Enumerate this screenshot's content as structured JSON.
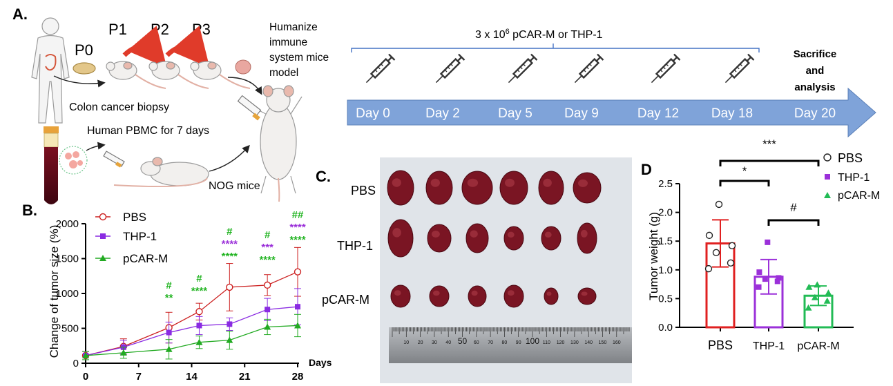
{
  "panel_a": {
    "label": "A.",
    "p0": "P0",
    "p1": "P1",
    "p2": "P2",
    "p3": "P3",
    "humanize_lines": [
      "Humanize",
      "immune",
      "system mice",
      "model"
    ],
    "biopsy": "Colon cancer biopsy",
    "pbmc": "Human PBMC for 7 days",
    "nog": "NOG mice",
    "dose_prefix": "3 x 10",
    "dose_exp": "6",
    "dose_suffix": " pCAR-M or THP-1",
    "timeline_days": [
      "Day 0",
      "Day 2",
      "Day 5",
      "Day 9",
      "Day 12",
      "Day 18",
      "Day 20"
    ],
    "end_lines": [
      "Sacrifice",
      "and",
      "analysis"
    ],
    "colors": {
      "arrow": "#7fa3d9",
      "arrow_text": "#ffffff",
      "syringe": "#333333",
      "bracket": "#4472c4",
      "mouse_arrow": "#e03b2a"
    }
  },
  "panel_b": {
    "label": "B.",
    "x_unit": "Days",
    "ylabel": "Change of tumor size (%)",
    "legend": [
      "PBS",
      "THP-1",
      "pCAR-M"
    ],
    "colors": {
      "PBS": "#cc2020",
      "THP-1": "#8a2be2",
      "pCAR-M": "#22aa22",
      "purple_text": "#9b30d9",
      "green_text": "#22b422"
    },
    "annotations": [
      {
        "day": 11,
        "lines": [
          {
            "text": "#",
            "color": "green"
          },
          {
            "text": "**",
            "color": "green"
          }
        ]
      },
      {
        "day": 15,
        "lines": [
          {
            "text": "#",
            "color": "green"
          },
          {
            "text": "****",
            "color": "green"
          }
        ]
      },
      {
        "day": 19,
        "lines": [
          {
            "text": "#",
            "color": "green"
          },
          {
            "text": "****",
            "color": "purple"
          },
          {
            "text": "****",
            "color": "green"
          }
        ]
      },
      {
        "day": 24,
        "lines": [
          {
            "text": "#",
            "color": "green"
          },
          {
            "text": "***",
            "color": "purple"
          },
          {
            "text": "****",
            "color": "green"
          }
        ]
      },
      {
        "day": 28,
        "lines": [
          {
            "text": "##",
            "color": "green"
          },
          {
            "text": "****",
            "color": "purple"
          },
          {
            "text": "****",
            "color": "green"
          }
        ]
      }
    ]
  },
  "panel_c": {
    "label": "C.",
    "rows": [
      "PBS",
      "THP-1",
      "pCAR-M"
    ],
    "ruler_labels": [
      "10",
      "20",
      "30",
      "40",
      "50",
      "60",
      "70",
      "80",
      "90",
      "100",
      "110",
      "120",
      "130",
      "140",
      "150",
      "160"
    ]
  },
  "panel_d": {
    "label": "D",
    "legend": [
      "PBS",
      "THP-1",
      "pCAR-M"
    ],
    "sig_labels": [
      "***",
      "*",
      "#"
    ],
    "colors": {
      "PBS": "#e02020",
      "THP-1": "#9b30d9",
      "pCAR-M": "#22bb55"
    }
  },
  "chart_data": [
    {
      "type": "line",
      "xlabel": "Days",
      "ylabel": "Change of tumor size (%)",
      "xlim": [
        0,
        28
      ],
      "ylim": [
        0,
        2000
      ],
      "xticks": [
        0,
        7,
        14,
        21,
        28
      ],
      "yticks": [
        0,
        500,
        1000,
        1500,
        2000
      ],
      "legend_position": "top-left",
      "x": [
        0,
        5,
        11,
        15,
        19,
        24,
        28
      ],
      "series": [
        {
          "name": "PBS",
          "marker": "open-circle",
          "values": [
            110,
            240,
            510,
            740,
            1090,
            1120,
            1310
          ],
          "errors": [
            60,
            110,
            220,
            120,
            340,
            150,
            350
          ]
        },
        {
          "name": "THP-1",
          "marker": "square",
          "values": [
            110,
            230,
            440,
            540,
            560,
            770,
            810
          ],
          "errors": [
            60,
            100,
            150,
            130,
            90,
            160,
            260
          ]
        },
        {
          "name": "pCAR-M",
          "marker": "triangle",
          "values": [
            110,
            150,
            200,
            300,
            330,
            520,
            540
          ],
          "errors": [
            60,
            80,
            140,
            90,
            130,
            110,
            160
          ]
        }
      ]
    },
    {
      "type": "bar",
      "ylabel": "Tumor weight (g)",
      "categories": [
        "PBS",
        "THP-1",
        "pCAR-M"
      ],
      "ylim": [
        0,
        2.5
      ],
      "yticks": [
        0.0,
        0.5,
        1.0,
        1.5,
        2.0,
        2.5
      ],
      "yticklabels": [
        "0.0",
        "0.5",
        "1.0",
        "1.5",
        "2.0",
        "2.5"
      ],
      "legend_position": "top-right",
      "series": [
        {
          "name": "PBS",
          "marker": "open-circle",
          "mean": 1.46,
          "sd": 0.41,
          "points": [
            2.14,
            1.6,
            1.42,
            1.3,
            1.12,
            1.02
          ]
        },
        {
          "name": "THP-1",
          "marker": "square",
          "mean": 0.88,
          "sd": 0.3,
          "points": [
            1.48,
            0.96,
            0.86,
            0.84,
            0.8,
            0.7
          ]
        },
        {
          "name": "pCAR-M",
          "marker": "triangle",
          "mean": 0.55,
          "sd": 0.17,
          "points": [
            0.74,
            0.7,
            0.6,
            0.52,
            0.46,
            0.34
          ]
        }
      ],
      "significance": [
        {
          "from": "PBS",
          "to": "pCAR-M",
          "label": "***"
        },
        {
          "from": "PBS",
          "to": "THP-1",
          "label": "*"
        },
        {
          "from": "THP-1",
          "to": "pCAR-M",
          "label": "#"
        }
      ]
    }
  ]
}
